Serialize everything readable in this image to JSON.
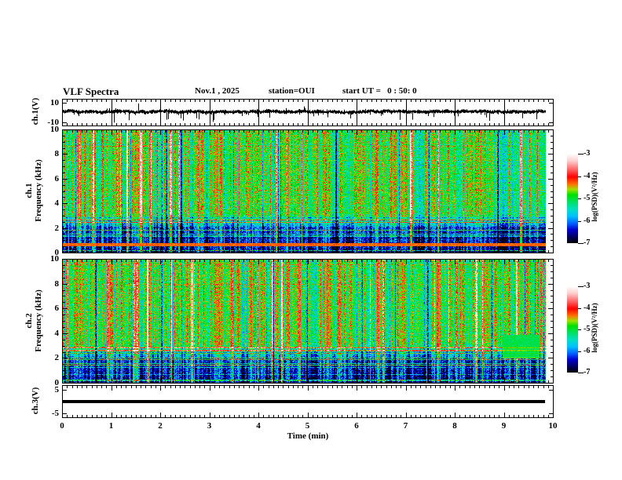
{
  "title": "VLF Spectra",
  "header": {
    "date": "Nov.1 , 2025",
    "station": "station=OUI",
    "start_ut": "start UT =   0 : 50: 0"
  },
  "x_axis": {
    "label": "Time (min)",
    "tick_labels": [
      "0",
      "1",
      "2",
      "3",
      "4",
      "5",
      "6",
      "7",
      "8",
      "9",
      "10"
    ],
    "tick_values": [
      0,
      1,
      2,
      3,
      4,
      5,
      6,
      7,
      8,
      9,
      10
    ],
    "range": [
      0,
      10
    ]
  },
  "panels": {
    "ch1_wave": {
      "ylabel": "ch.1(V)",
      "ytick_labels": [
        "10",
        "-10"
      ],
      "ytick_values": [
        10,
        -10
      ],
      "yrange": [
        -14,
        14
      ]
    },
    "ch1_spec": {
      "ylabel_line1": "ch.1",
      "ylabel_line2": "Frequency (kHz)",
      "ytick_labels": [
        "10",
        "8",
        "6",
        "4",
        "2",
        "0"
      ],
      "ytick_values": [
        10,
        8,
        6,
        4,
        2,
        0
      ],
      "yrange": [
        0,
        10
      ]
    },
    "ch2_spec": {
      "ylabel_line1": "ch.2",
      "ylabel_line2": "Frequency (kHz)",
      "ytick_labels": [
        "10",
        "8",
        "6",
        "4",
        "2",
        "0"
      ],
      "ytick_values": [
        10,
        8,
        6,
        4,
        2,
        0
      ],
      "yrange": [
        0,
        10
      ]
    },
    "ch3": {
      "ylabel": "ch.3(V)",
      "ytick_labels": [
        "5",
        "-5"
      ],
      "ytick_values": [
        5,
        -5
      ],
      "yrange": [
        -6.8,
        6.8
      ]
    }
  },
  "colorbar": {
    "label": "log(PSD)(V²/Hz)",
    "tick_labels": [
      "-3",
      "-4",
      "-5",
      "-6",
      "-7"
    ],
    "tick_values": [
      -3,
      -4,
      -5,
      -6,
      -7
    ],
    "range": [
      -7,
      -3
    ],
    "palette_stops": [
      [
        0.0,
        "#000000"
      ],
      [
        0.07,
        "#000060"
      ],
      [
        0.15,
        "#0000d0"
      ],
      [
        0.22,
        "#0060ff"
      ],
      [
        0.3,
        "#00c0ff"
      ],
      [
        0.38,
        "#00e0c0"
      ],
      [
        0.45,
        "#00e070"
      ],
      [
        0.54,
        "#00e000"
      ],
      [
        0.6,
        "#a0e000"
      ],
      [
        0.66,
        "#ff7000"
      ],
      [
        0.74,
        "#ff0000"
      ],
      [
        0.82,
        "#ff6060"
      ],
      [
        0.92,
        "#ffd0d0"
      ],
      [
        1.0,
        "#ffffff"
      ]
    ]
  },
  "colors": {
    "axis": "#000000",
    "background": "#ffffff",
    "waveform": "#000000",
    "ch3_line": "#000000"
  },
  "chart_data": [
    {
      "type": "line",
      "panel": "ch.1 time series",
      "xlabel": "Time (min)",
      "ylabel": "ch.1(V)",
      "xlim": [
        0,
        10
      ],
      "ylim": [
        -10,
        10
      ],
      "yticks": [
        10,
        -10
      ],
      "data_x_extent": [
        0,
        9.84
      ],
      "description": "Continuous broadband noise centered on 0 V with ~±2 V envelope and frequent impulsive spikes (sferics); many spikes reach toward -10/+10 V, with notable clusters near 1.1, 2.6, 4.3, 5.0, 6.1, 6.7 and 8.0 min."
    },
    {
      "type": "heatmap",
      "panel": "ch.1 spectrogram",
      "xlabel": "Time (min)",
      "ylabel": "Frequency (kHz)",
      "xlim": [
        0,
        10
      ],
      "ylim": [
        0,
        10
      ],
      "yticks": [
        0,
        2,
        4,
        6,
        8,
        10
      ],
      "zlabel": "log(PSD)(V²/Hz)",
      "zlim": [
        -7,
        -3
      ],
      "data_x_extent": [
        0,
        9.84
      ],
      "description": "Dense vertical striations over the whole record. Above ~3 kHz power is mostly -4.5 to -4 (green/yellow) with many hot red/orange vertical streaks near -3.5. Below ~2.5 kHz power drops to -6.5/-7 (dark blue/black) crossed by thin cyan/green horizontal lines (power-line/hum harmonics). A narrow dark-red horizontal band sits near 0.6-0.7 kHz."
    },
    {
      "type": "heatmap",
      "panel": "ch.2 spectrogram",
      "xlabel": "Time (min)",
      "ylabel": "Frequency (kHz)",
      "xlim": [
        0,
        10
      ],
      "ylim": [
        0,
        10
      ],
      "yticks": [
        0,
        2,
        4,
        6,
        8,
        10
      ],
      "zlabel": "log(PSD)(V²/Hz)",
      "zlim": [
        -7,
        -3
      ],
      "data_x_extent": [
        0,
        9.84
      ],
      "description": "Similar striated structure to ch.1: green/yellow with red streaks above ~3 kHz, dark blue bands with cyan horizontal lines below ~2.5 kHz. A uniform green patch (~ -5) appears from ~9.0 to 9.7 min between ~2 and 4 kHz."
    },
    {
      "type": "line",
      "panel": "ch.3 time series",
      "xlabel": "Time (min)",
      "ylabel": "ch.3(V)",
      "xlim": [
        0,
        10
      ],
      "ylim": [
        -5,
        5
      ],
      "yticks": [
        5,
        -5
      ],
      "x": [
        0,
        9.84
      ],
      "y": [
        0,
        0
      ],
      "description": "Constant 0 V: a single thick flat black line across the full record."
    }
  ]
}
